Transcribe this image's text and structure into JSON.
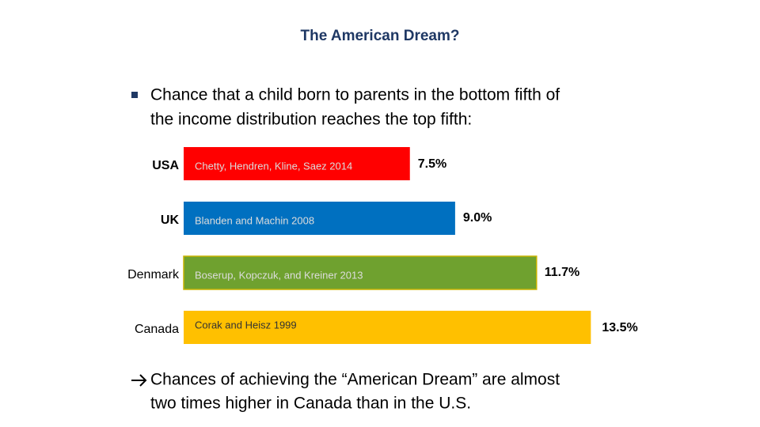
{
  "title": "The American Dream?",
  "bullet": [
    "Chance that a child born to parents in the bottom fifth of",
    "the income distribution reaches the top fifth:"
  ],
  "chart_data": {
    "type": "bar",
    "orientation": "horizontal",
    "categories": [
      "USA",
      "UK",
      "Denmark",
      "Canada"
    ],
    "values": [
      7.5,
      9.0,
      11.7,
      13.5
    ],
    "value_labels": [
      "7.5%",
      "9.0%",
      "11.7%",
      "13.5%"
    ],
    "annotations": [
      "Chetty, Hendren, Kline, Saez 2014",
      "Blanden and Machin 2008",
      "Boserup, Kopczuk, and Kreiner 2013",
      "Corak and Heisz 1999"
    ],
    "colors": [
      "#ff0000",
      "#0070c0",
      "#6fa12f",
      "#ffc000"
    ]
  },
  "conclusion": [
    "Chances of achieving the “American Dream” are almost",
    "two times higher in Canada than in the U.S."
  ]
}
